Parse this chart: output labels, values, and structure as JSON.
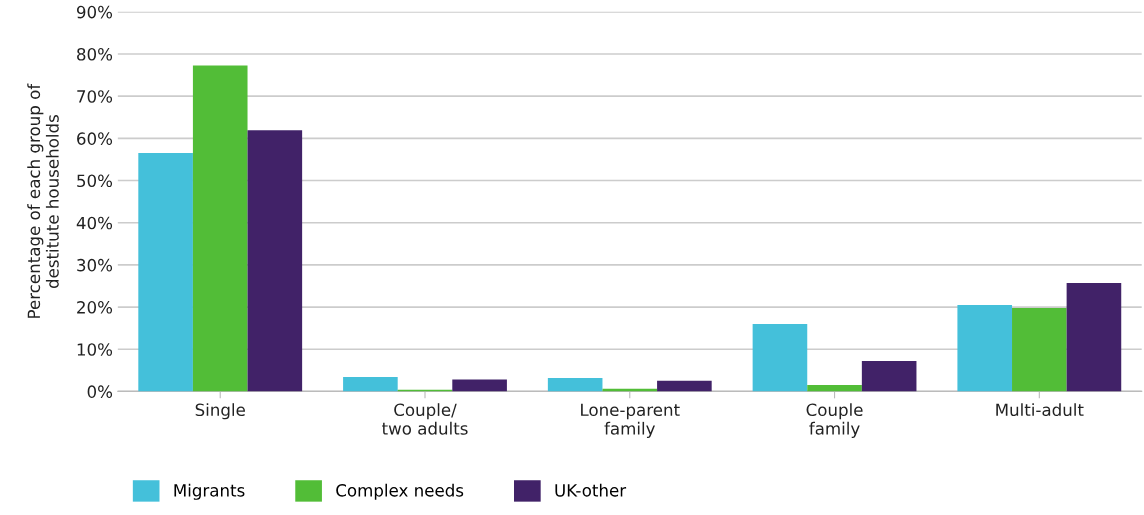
{
  "chart_data": {
    "type": "bar",
    "ylabel": "Percentage of each group of\ndestitute households",
    "categories": [
      "Single",
      "Couple/\ntwo adults",
      "Lone-parent\nfamily",
      "Couple\nfamily",
      "Multi-adult"
    ],
    "series": [
      {
        "name": "Migrants",
        "color": "#44c0da",
        "values": [
          56.5,
          3.4,
          3.2,
          16.0,
          20.5
        ]
      },
      {
        "name": "Complex needs",
        "color": "#52bd37",
        "values": [
          77.3,
          0.4,
          0.6,
          1.5,
          19.8
        ]
      },
      {
        "name": "UK-other",
        "color": "#412268",
        "values": [
          61.9,
          2.8,
          2.5,
          7.2,
          25.7
        ]
      }
    ],
    "ylim": [
      0,
      90
    ],
    "yticks": [
      {
        "value": 0,
        "label": "0%"
      },
      {
        "value": 10,
        "label": "10%"
      },
      {
        "value": 20,
        "label": "20%"
      },
      {
        "value": 30,
        "label": "30%"
      },
      {
        "value": 40,
        "label": "40%"
      },
      {
        "value": 50,
        "label": "50%"
      },
      {
        "value": 60,
        "label": "60%"
      },
      {
        "value": 70,
        "label": "70%"
      },
      {
        "value": 80,
        "label": "80%"
      },
      {
        "value": 90,
        "label": "90%"
      }
    ],
    "grid": "y",
    "legend": "bottom left"
  }
}
